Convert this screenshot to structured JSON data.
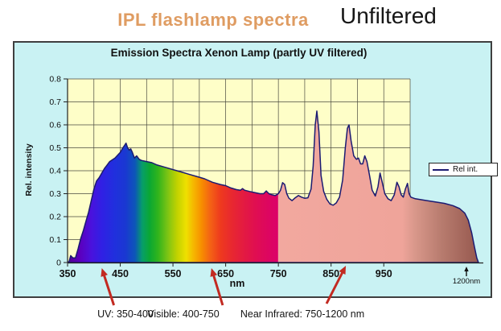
{
  "page": {
    "heading": "IPL flashlamp spectra",
    "heading_color": "#df9c62",
    "subheading": "Unfiltered"
  },
  "chart": {
    "title": "Emission Spectra Xenon Lamp (partly UV filtered)",
    "ylabel": "Rel. intensity",
    "xlabel": "nm",
    "legend_label": "Rel int.",
    "end_label": "1200nm",
    "x_ticks": [
      "350",
      "450",
      "550",
      "650",
      "750",
      "850",
      "950"
    ],
    "y_ticks": [
      "0",
      "0.1",
      "0.2",
      "0.3",
      "0.4",
      "0.5",
      "0.6",
      "0.7",
      "0.8"
    ],
    "panel_bg": "#c9f2f3",
    "plot_bg": "#fefec8",
    "line_color": "#1b1b72",
    "grid_color": "#4a4a40",
    "arrow_color": "#c22a21",
    "nir_fill": "#f2a79f",
    "nir_tail_fill": "#98584e"
  },
  "annotations": [
    {
      "label": "UV: 350-400",
      "arrow_nm": 415
    },
    {
      "label": "Visible: 400-750",
      "arrow_nm": 623
    },
    {
      "label": "Near Infrared: 750-1200 nm",
      "arrow_nm": 878
    }
  ],
  "chart_data": {
    "type": "area",
    "title": "Emission Spectra Xenon Lamp (partly UV filtered)",
    "xlabel": "nm",
    "ylabel": "Rel. intensity",
    "xlim": [
      350,
      1200
    ],
    "ylim": [
      0,
      0.8
    ],
    "grid": true,
    "legend_position": "right",
    "x_grid_step_nm": 50,
    "x_linear_range": [
      350,
      1000
    ],
    "x_compressed_range": [
      1000,
      1200
    ],
    "regions": [
      {
        "name": "UV",
        "range": [
          350,
          400
        ]
      },
      {
        "name": "Visible",
        "range": [
          400,
          750
        ]
      },
      {
        "name": "Near Infrared",
        "range": [
          750,
          1200
        ]
      }
    ],
    "series": [
      {
        "name": "Rel int.",
        "points": [
          [
            350,
            0
          ],
          [
            353,
            0.005
          ],
          [
            356,
            0.03
          ],
          [
            360,
            0.02
          ],
          [
            365,
            0.02
          ],
          [
            370,
            0.06
          ],
          [
            375,
            0.105
          ],
          [
            380,
            0.14
          ],
          [
            385,
            0.18
          ],
          [
            390,
            0.22
          ],
          [
            395,
            0.27
          ],
          [
            400,
            0.32
          ],
          [
            405,
            0.355
          ],
          [
            410,
            0.37
          ],
          [
            415,
            0.39
          ],
          [
            420,
            0.41
          ],
          [
            425,
            0.425
          ],
          [
            430,
            0.44
          ],
          [
            440,
            0.455
          ],
          [
            450,
            0.48
          ],
          [
            455,
            0.5
          ],
          [
            458,
            0.51
          ],
          [
            461,
            0.52
          ],
          [
            464,
            0.5
          ],
          [
            467,
            0.49
          ],
          [
            470,
            0.495
          ],
          [
            473,
            0.48
          ],
          [
            477,
            0.455
          ],
          [
            481,
            0.465
          ],
          [
            486,
            0.45
          ],
          [
            490,
            0.445
          ],
          [
            500,
            0.44
          ],
          [
            510,
            0.435
          ],
          [
            520,
            0.425
          ],
          [
            535,
            0.415
          ],
          [
            550,
            0.405
          ],
          [
            565,
            0.395
          ],
          [
            580,
            0.385
          ],
          [
            595,
            0.375
          ],
          [
            610,
            0.365
          ],
          [
            625,
            0.35
          ],
          [
            640,
            0.34
          ],
          [
            650,
            0.335
          ],
          [
            660,
            0.325
          ],
          [
            670,
            0.318
          ],
          [
            678,
            0.315
          ],
          [
            682,
            0.322
          ],
          [
            686,
            0.315
          ],
          [
            695,
            0.31
          ],
          [
            705,
            0.305
          ],
          [
            715,
            0.3
          ],
          [
            722,
            0.3
          ],
          [
            727,
            0.312
          ],
          [
            732,
            0.3
          ],
          [
            738,
            0.295
          ],
          [
            744,
            0.292
          ],
          [
            750,
            0.3
          ],
          [
            754,
            0.315
          ],
          [
            758,
            0.348
          ],
          [
            762,
            0.34
          ],
          [
            766,
            0.3
          ],
          [
            770,
            0.28
          ],
          [
            776,
            0.27
          ],
          [
            782,
            0.282
          ],
          [
            788,
            0.292
          ],
          [
            794,
            0.285
          ],
          [
            800,
            0.28
          ],
          [
            806,
            0.282
          ],
          [
            812,
            0.32
          ],
          [
            816,
            0.42
          ],
          [
            820,
            0.6
          ],
          [
            823,
            0.66
          ],
          [
            827,
            0.57
          ],
          [
            831,
            0.38
          ],
          [
            836,
            0.31
          ],
          [
            842,
            0.275
          ],
          [
            848,
            0.255
          ],
          [
            854,
            0.25
          ],
          [
            860,
            0.26
          ],
          [
            866,
            0.285
          ],
          [
            872,
            0.36
          ],
          [
            877,
            0.5
          ],
          [
            881,
            0.585
          ],
          [
            884,
            0.6
          ],
          [
            888,
            0.53
          ],
          [
            893,
            0.465
          ],
          [
            898,
            0.45
          ],
          [
            902,
            0.455
          ],
          [
            906,
            0.43
          ],
          [
            910,
            0.43
          ],
          [
            914,
            0.465
          ],
          [
            918,
            0.44
          ],
          [
            923,
            0.38
          ],
          [
            928,
            0.315
          ],
          [
            934,
            0.29
          ],
          [
            939,
            0.33
          ],
          [
            943,
            0.39
          ],
          [
            947,
            0.35
          ],
          [
            952,
            0.3
          ],
          [
            958,
            0.278
          ],
          [
            964,
            0.27
          ],
          [
            970,
            0.295
          ],
          [
            975,
            0.35
          ],
          [
            979,
            0.33
          ],
          [
            983,
            0.295
          ],
          [
            987,
            0.285
          ],
          [
            991,
            0.32
          ],
          [
            995,
            0.345
          ],
          [
            998,
            0.3
          ],
          [
            1002,
            0.285
          ],
          [
            1015,
            0.278
          ],
          [
            1040,
            0.272
          ],
          [
            1070,
            0.265
          ],
          [
            1100,
            0.258
          ],
          [
            1125,
            0.248
          ],
          [
            1145,
            0.235
          ],
          [
            1160,
            0.215
          ],
          [
            1170,
            0.185
          ],
          [
            1180,
            0.13
          ],
          [
            1188,
            0.07
          ],
          [
            1195,
            0.02
          ],
          [
            1200,
            0
          ]
        ]
      }
    ],
    "gradient_stops": [
      [
        350,
        "#55008f"
      ],
      [
        375,
        "#5a00c0"
      ],
      [
        395,
        "#4a12dd"
      ],
      [
        415,
        "#3020e4"
      ],
      [
        440,
        "#2030dd"
      ],
      [
        460,
        "#1a38d2"
      ],
      [
        478,
        "#0c56b8"
      ],
      [
        492,
        "#079e68"
      ],
      [
        506,
        "#0ba832"
      ],
      [
        522,
        "#32b41c"
      ],
      [
        540,
        "#7cc414"
      ],
      [
        558,
        "#c2d200"
      ],
      [
        575,
        "#eee000"
      ],
      [
        590,
        "#f6b400"
      ],
      [
        605,
        "#f78c00"
      ],
      [
        620,
        "#f46414"
      ],
      [
        640,
        "#ee3a1e"
      ],
      [
        662,
        "#e82830"
      ],
      [
        685,
        "#e31a42"
      ],
      [
        705,
        "#e00f50"
      ],
      [
        730,
        "#dd0660"
      ],
      [
        749,
        "#dc0268"
      ],
      [
        750,
        "#f2a89f"
      ],
      [
        985,
        "#efa49a"
      ],
      [
        1015,
        "#d8978a"
      ],
      [
        1090,
        "#b87c6f"
      ],
      [
        1200,
        "#96584e"
      ]
    ]
  }
}
